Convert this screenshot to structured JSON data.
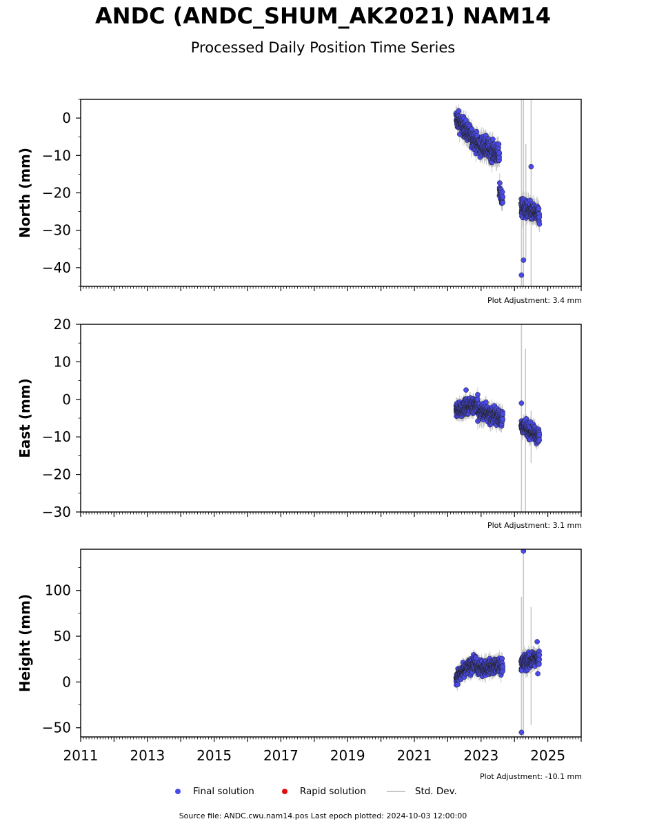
{
  "title": "ANDC (ANDC_SHUM_AK2021) NAM14",
  "subtitle": "Processed Daily Position Time Series",
  "colors": {
    "final": "#4a4aea",
    "rapid": "#e01010",
    "stddev": "#c8c8c8",
    "point_edge": "#222222"
  },
  "legend": {
    "final": "Final solution",
    "rapid": "Rapid solution",
    "stddev": "Std. Dev."
  },
  "footer": "Source file: ANDC.cwu.nam14.pos  Last epoch plotted: 2024-10-03 12:00:00",
  "chart_data": [
    {
      "type": "scatter",
      "ylabel": "North (mm)",
      "adjustment": "Plot Adjustment: 3.4 mm",
      "xlim": [
        2011,
        2026
      ],
      "ylim": [
        -45,
        5
      ],
      "yticks": [
        0,
        -10,
        -20,
        -30,
        -40
      ],
      "ytick_labels": [
        "0",
        "−10",
        "−20",
        "−30",
        "−40"
      ],
      "x_tick_labels_shown": false,
      "segments": [
        {
          "x_start": 2022.25,
          "x_end": 2023.0,
          "y_start": 0,
          "y_end": -8,
          "noise": 1.7
        },
        {
          "x_start": 2023.0,
          "x_end": 2023.55,
          "y_start": -7,
          "y_end": -10,
          "noise": 1.8
        },
        {
          "x_start": 2023.55,
          "x_end": 2023.65,
          "y_start": -19,
          "y_end": -22,
          "noise": 1.6
        },
        {
          "x_start": 2024.2,
          "x_end": 2024.75,
          "y_start": -24,
          "y_end": -26,
          "noise": 1.7
        }
      ],
      "outliers": [
        [
          2024.5,
          -13
        ],
        [
          2024.27,
          -38
        ],
        [
          2024.21,
          -42
        ]
      ],
      "stddev_bars": [
        [
          2024.21,
          -45,
          5
        ],
        [
          2024.27,
          -45,
          5
        ],
        [
          2024.5,
          -45,
          5
        ],
        [
          2024.34,
          -38,
          -7
        ]
      ]
    },
    {
      "type": "scatter",
      "ylabel": "East (mm)",
      "adjustment": "Plot Adjustment: 3.1 mm",
      "xlim": [
        2011,
        2026
      ],
      "ylim": [
        -30,
        20
      ],
      "yticks": [
        20,
        10,
        0,
        -10,
        -20,
        -30
      ],
      "ytick_labels": [
        "20",
        "10",
        "0",
        "−10",
        "−20",
        "−30"
      ],
      "x_tick_labels_shown": false,
      "segments": [
        {
          "x_start": 2022.25,
          "x_end": 2022.9,
          "y_start": -3,
          "y_end": -1,
          "noise": 1.4
        },
        {
          "x_start": 2022.9,
          "x_end": 2023.65,
          "y_start": -3,
          "y_end": -5,
          "noise": 1.6
        },
        {
          "x_start": 2024.2,
          "x_end": 2024.75,
          "y_start": -7,
          "y_end": -10,
          "noise": 1.3
        }
      ],
      "outliers": [
        [
          2024.21,
          -1
        ],
        [
          2022.55,
          2.5
        ]
      ],
      "stddev_bars": [
        [
          2024.21,
          -30,
          20
        ],
        [
          2024.33,
          -30,
          13.5
        ],
        [
          2024.5,
          -17,
          -3
        ]
      ]
    },
    {
      "type": "scatter",
      "ylabel": "Height (mm)",
      "adjustment": "Plot Adjustment: -10.1 mm",
      "xlim": [
        2011,
        2026
      ],
      "ylim": [
        -60,
        145
      ],
      "yticks": [
        100,
        50,
        0,
        -50
      ],
      "ytick_labels": [
        "100",
        "50",
        "0",
        "−50"
      ],
      "x_tick_labels_shown": true,
      "xtick_labels": [
        "2011",
        "2013",
        "2015",
        "2017",
        "2019",
        "2021",
        "2023",
        "2025"
      ],
      "segments": [
        {
          "x_start": 2022.25,
          "x_end": 2022.85,
          "y_start": 5,
          "y_end": 22,
          "noise": 5.5
        },
        {
          "x_start": 2022.85,
          "x_end": 2023.65,
          "y_start": 15,
          "y_end": 18,
          "noise": 5.5
        },
        {
          "x_start": 2024.2,
          "x_end": 2024.75,
          "y_start": 20,
          "y_end": 27,
          "noise": 6.0
        }
      ],
      "outliers": [
        [
          2024.27,
          143
        ],
        [
          2024.21,
          -55
        ],
        [
          2024.68,
          44
        ],
        [
          2024.7,
          9
        ]
      ],
      "stddev_bars": [
        [
          2024.21,
          -60,
          93
        ],
        [
          2024.27,
          -60,
          145
        ],
        [
          2024.5,
          -47,
          82
        ]
      ]
    }
  ]
}
